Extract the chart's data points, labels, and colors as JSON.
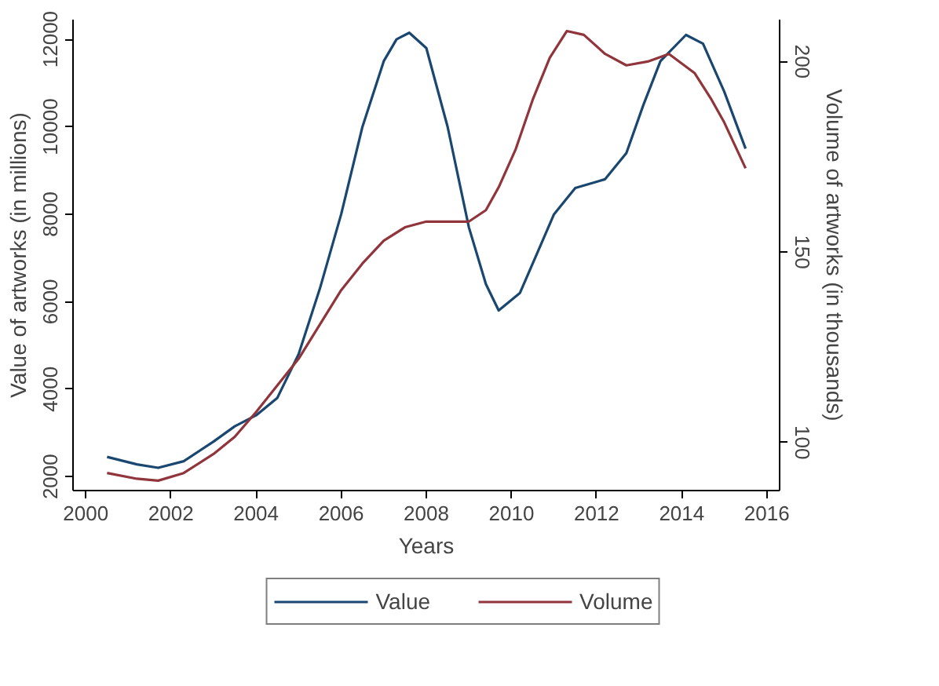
{
  "chart_data": {
    "type": "line",
    "xlabel": "Years",
    "ylabel": "Value of artworks (in millions)",
    "y2label": "Volume of artworks (in thousands)",
    "xlim": [
      1999.7,
      2016.3
    ],
    "xticks": [
      2000,
      2002,
      2004,
      2006,
      2008,
      2010,
      2012,
      2014,
      2016
    ],
    "ylim": [
      1680,
      12450
    ],
    "yticks": [
      2000,
      4000,
      6000,
      8000,
      10000,
      12000
    ],
    "y2lim": [
      87.4,
      211
    ],
    "y2ticks": [
      100,
      150,
      200
    ],
    "grid": false,
    "legend": "bottom",
    "marker": "none",
    "line_style": "solid",
    "series": [
      {
        "name": "Value",
        "color": "#1a476f",
        "x": [
          2000.5,
          2001.2,
          2001.7,
          2002.3,
          2003,
          2003.5,
          2004,
          2004.5,
          2005,
          2005.5,
          2006,
          2006.5,
          2007,
          2007.3,
          2007.6,
          2008,
          2008.5,
          2009,
          2009.4,
          2009.7,
          2010.2,
          2010.6,
          2011,
          2011.5,
          2012.2,
          2012.7,
          2013.1,
          2013.5,
          2014.1,
          2014.5,
          2015,
          2015.5
        ],
        "values": [
          2450,
          2280,
          2200,
          2350,
          2800,
          3150,
          3400,
          3800,
          4800,
          6300,
          8000,
          10000,
          11500,
          12000,
          12150,
          11800,
          10000,
          7700,
          6400,
          5800,
          6200,
          7100,
          8000,
          8600,
          8800,
          9400,
          10500,
          11500,
          12100,
          11900,
          10800,
          9500
        ]
      },
      {
        "name": "Volume",
        "color": "#90353b",
        "axis": "y2",
        "x": [
          2000.5,
          2001.2,
          2001.7,
          2002.3,
          2003,
          2003.5,
          2004,
          2004.5,
          2005,
          2005.5,
          2006,
          2006.5,
          2007,
          2007.5,
          2008,
          2008.5,
          2009,
          2009.4,
          2009.7,
          2010.1,
          2010.5,
          2010.9,
          2011.3,
          2011.7,
          2012.2,
          2012.7,
          2013.2,
          2013.7,
          2014.3,
          2014.7,
          2015,
          2015.5
        ],
        "values": [
          92,
          90.5,
          90,
          92,
          97,
          101.5,
          108,
          115,
          122,
          131,
          140,
          147,
          153,
          156.5,
          158,
          158,
          158,
          161,
          167,
          177,
          190,
          201,
          208,
          207,
          202,
          199,
          200,
          202,
          197,
          190,
          184,
          172
        ]
      }
    ]
  }
}
